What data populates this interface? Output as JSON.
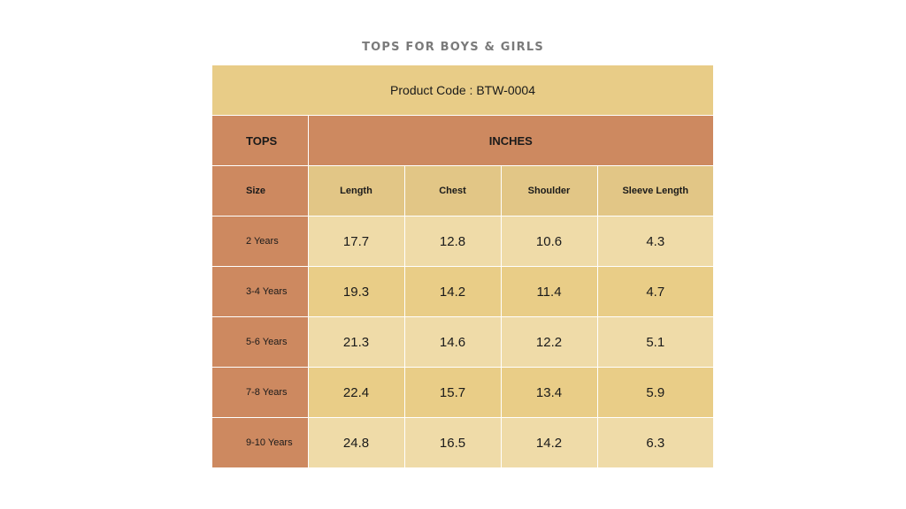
{
  "title": "TOPS FOR BOYS & GIRLS",
  "product_code": "Product Code : BTW-0004",
  "header": {
    "tops": "TOPS",
    "inches": "INCHES"
  },
  "columns": {
    "size": "Size",
    "length": "Length",
    "chest": "Chest",
    "shoulder": "Shoulder",
    "sleeve": "Sleeve Length"
  },
  "rows": [
    {
      "size": "2 Years",
      "length": "17.7",
      "chest": "12.8",
      "shoulder": "10.6",
      "sleeve": "4.3"
    },
    {
      "size": "3-4 Years",
      "length": "19.3",
      "chest": "14.2",
      "shoulder": "11.4",
      "sleeve": "4.7"
    },
    {
      "size": "5-6 Years",
      "length": "21.3",
      "chest": "14.6",
      "shoulder": "12.2",
      "sleeve": "5.1"
    },
    {
      "size": "7-8 Years",
      "length": "22.4",
      "chest": "15.7",
      "shoulder": "13.4",
      "sleeve": "5.9"
    },
    {
      "size": "9-10 Years",
      "length": "24.8",
      "chest": "16.5",
      "shoulder": "14.2",
      "sleeve": "6.3"
    }
  ],
  "colors": {
    "title": "#7a7a7a",
    "code_band": "#e8cc87",
    "terracotta": "#cd8960",
    "column_header": "#e2c686",
    "row_light": "#efdba8",
    "row_dark": "#e9cd87"
  }
}
